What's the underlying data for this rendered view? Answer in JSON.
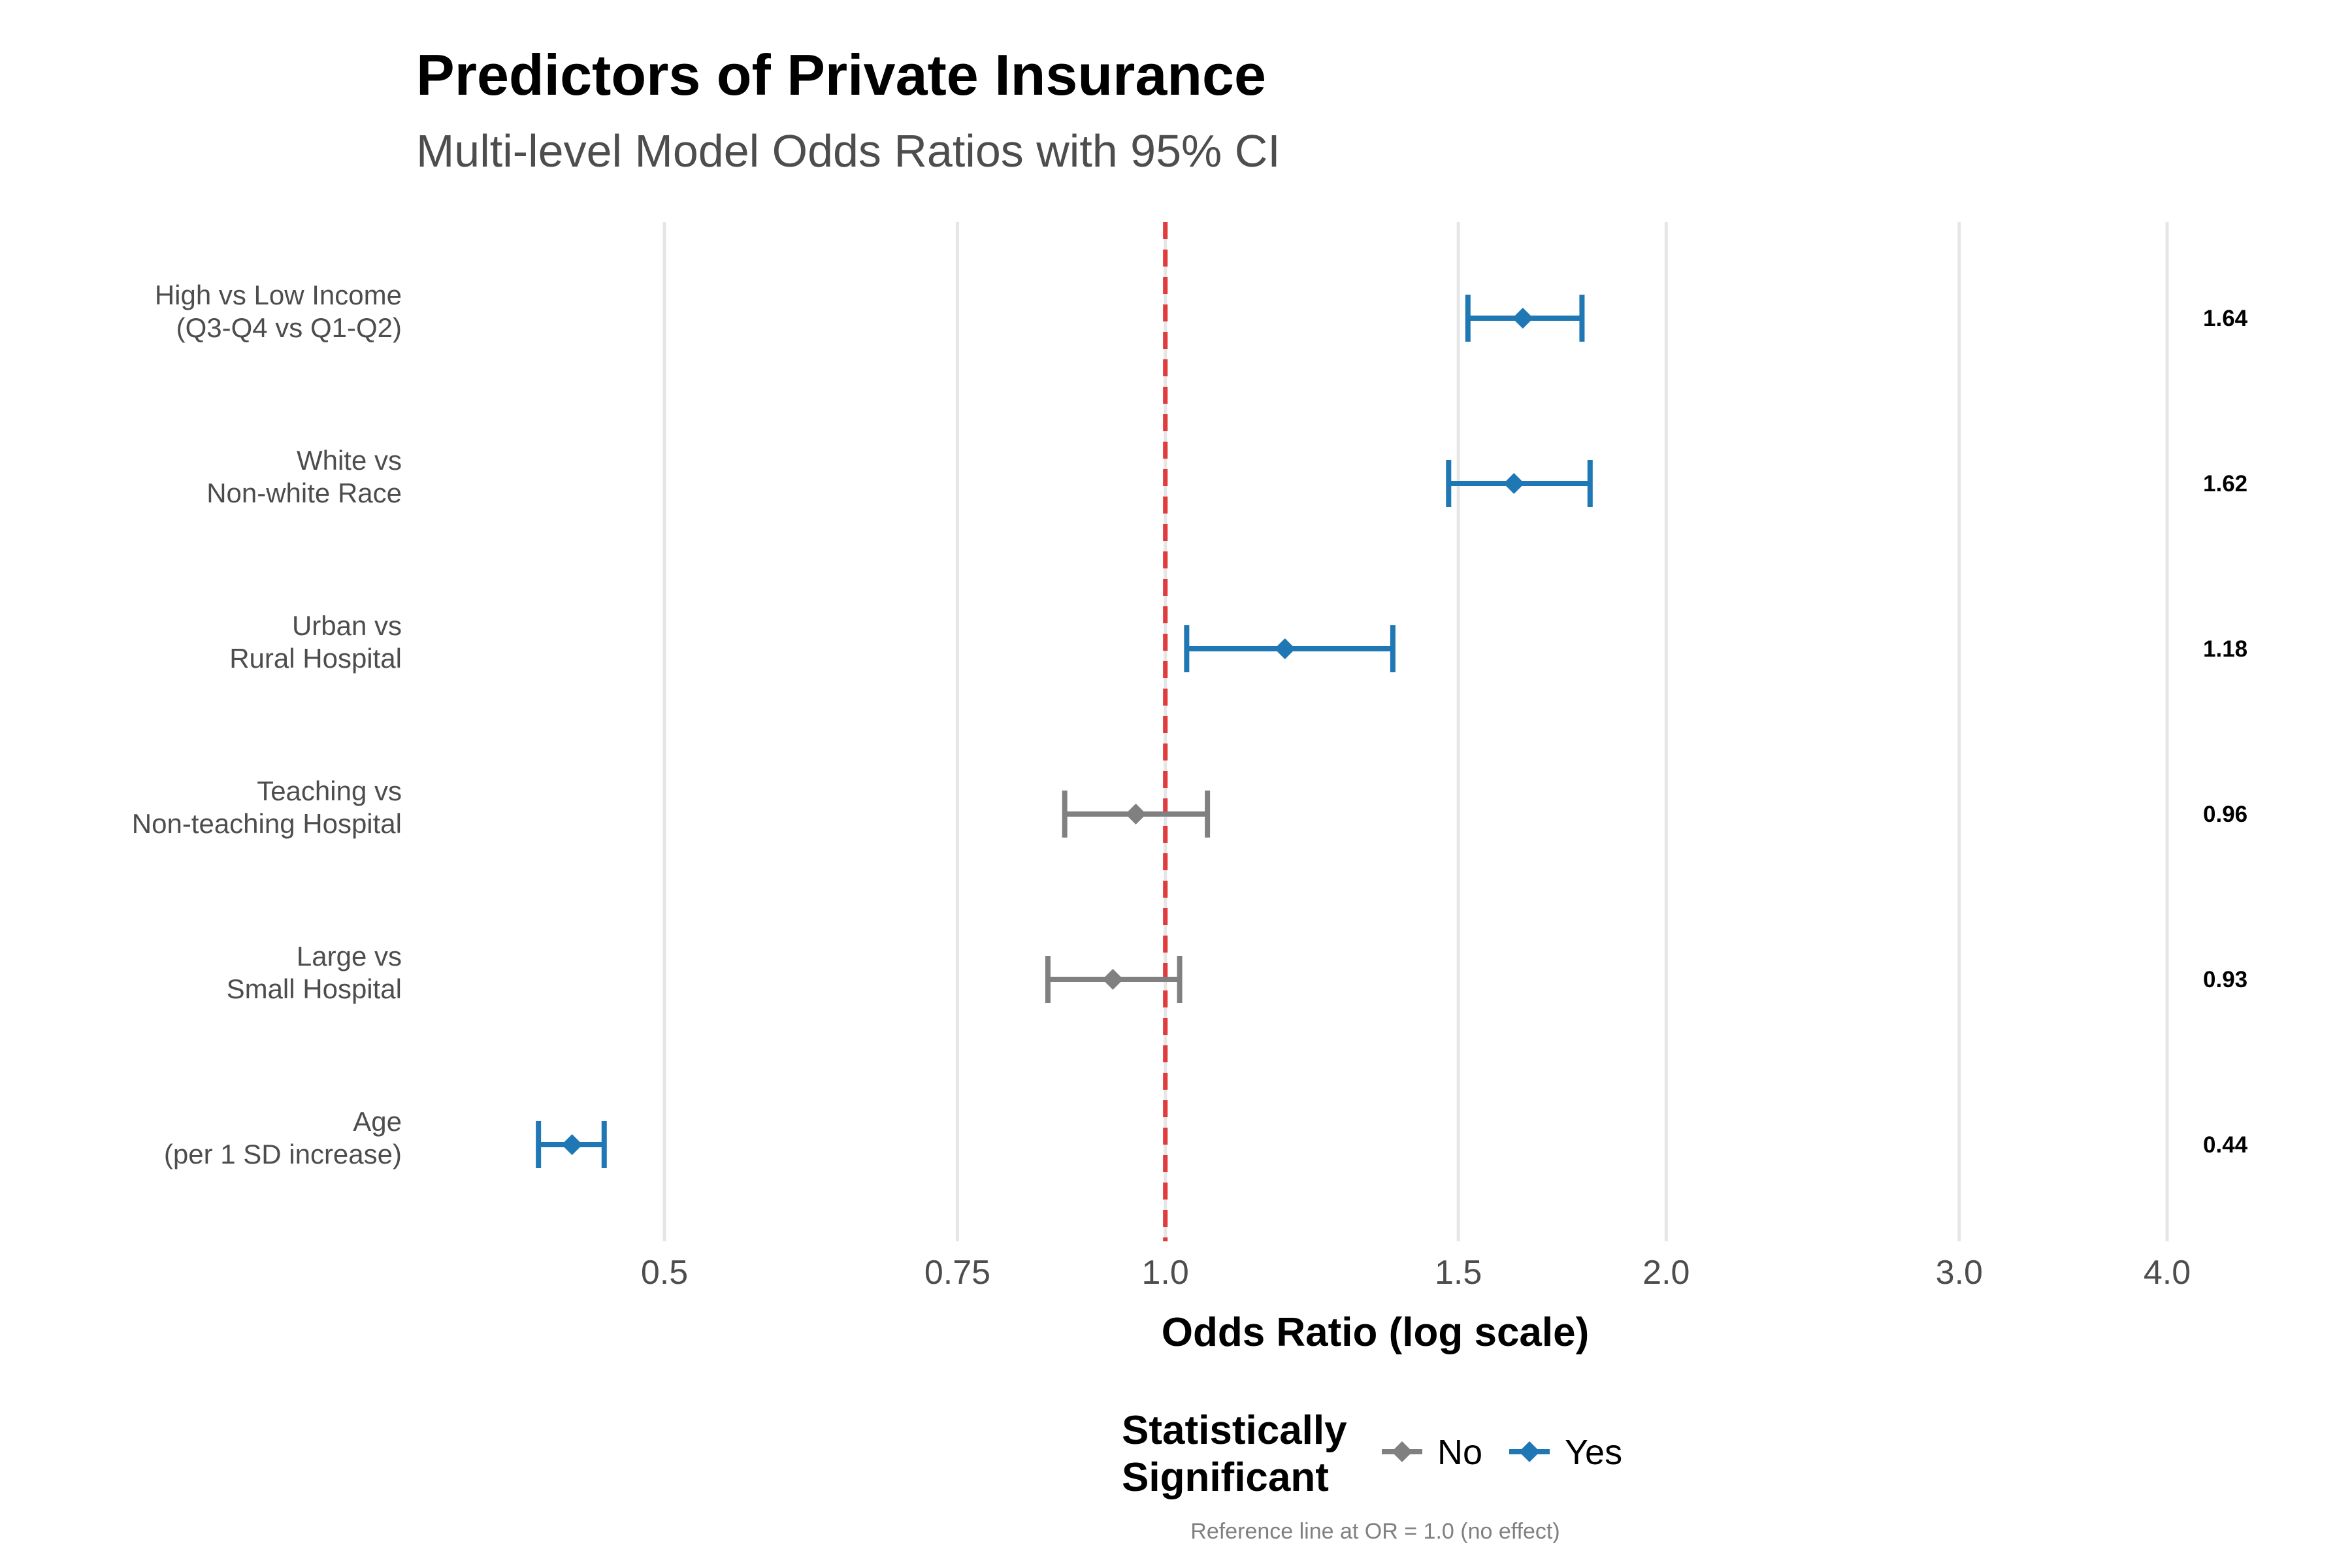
{
  "colors": {
    "significant": "#1f77b4",
    "not_significant": "#808080",
    "reference_line": "#e03c3c",
    "grid": "#e6e6e6"
  },
  "chart_data": {
    "type": "forest",
    "title": "Predictors of Private Insurance",
    "subtitle": "Multi-level Model Odds Ratios with 95% CI",
    "xlabel": "Odds Ratio (log scale)",
    "x_scale": "log",
    "xlim": [
      0.41,
      4.0
    ],
    "x_ticks": [
      {
        "value": 0.5,
        "label": "0.5"
      },
      {
        "value": 0.75,
        "label": "0.75"
      },
      {
        "value": 1.0,
        "label": "1.0"
      },
      {
        "value": 1.5,
        "label": "1.5"
      },
      {
        "value": 2.0,
        "label": "2.0"
      },
      {
        "value": 3.0,
        "label": "3.0"
      },
      {
        "value": 4.0,
        "label": "4.0"
      }
    ],
    "reference_line": 1.0,
    "grid": "vertical",
    "legend": {
      "title_lines": [
        "Statistically",
        "Significant"
      ],
      "position": "bottom",
      "entries": [
        {
          "label": "No",
          "significant": false
        },
        {
          "label": "Yes",
          "significant": true
        }
      ]
    },
    "caption": "Reference line at OR = 1.0 (no effect)",
    "rows": [
      {
        "label_lines": [
          "High vs Low Income",
          "(Q3-Q4 vs Q1-Q2)"
        ],
        "or": 1.64,
        "lower": 1.52,
        "upper": 1.78,
        "significant": true,
        "value_label": "1.64"
      },
      {
        "label_lines": [
          "White vs",
          "Non-white Race"
        ],
        "or": 1.62,
        "lower": 1.48,
        "upper": 1.8,
        "significant": true,
        "value_label": "1.62"
      },
      {
        "label_lines": [
          "Urban vs",
          "Rural Hospital"
        ],
        "or": 1.18,
        "lower": 1.03,
        "upper": 1.37,
        "significant": true,
        "value_label": "1.18"
      },
      {
        "label_lines": [
          "Teaching vs",
          "Non-teaching Hospital"
        ],
        "or": 0.96,
        "lower": 0.87,
        "upper": 1.06,
        "significant": false,
        "value_label": "0.96"
      },
      {
        "label_lines": [
          "Large vs",
          "Small Hospital"
        ],
        "or": 0.93,
        "lower": 0.85,
        "upper": 1.02,
        "significant": false,
        "value_label": "0.93"
      },
      {
        "label_lines": [
          "Age",
          "(per 1 SD increase)"
        ],
        "or": 0.44,
        "lower": 0.42,
        "upper": 0.46,
        "significant": true,
        "value_label": "0.44"
      }
    ]
  }
}
